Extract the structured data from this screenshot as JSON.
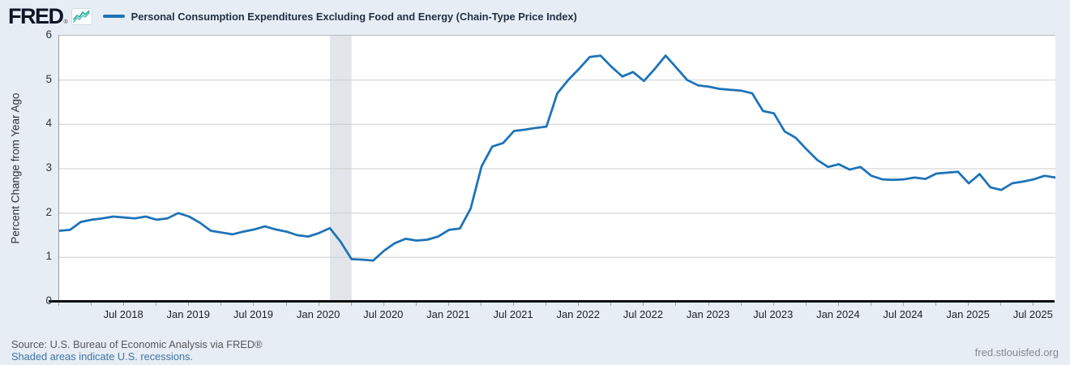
{
  "header": {
    "logo_text": "FRED",
    "logo_registered": "®",
    "series_title": "Personal Consumption Expenditures Excluding Food and Energy (Chain-Type Price Index)"
  },
  "footer": {
    "source_line": "Source: U.S. Bureau of Economic Analysis via FRED®",
    "recession_note": "Shaded areas indicate U.S. recessions.",
    "site_url": "fred.stlouisfed.org"
  },
  "colors": {
    "line": "#1d73b8",
    "gridline": "#cdcdcd",
    "recession_band": "#e2e5e9",
    "background": "#e7edf4",
    "spark_icon_teal_dark": "#2fa9a0",
    "spark_icon_teal_light": "#5cc2b9"
  },
  "chart_data": {
    "type": "line",
    "title": "Personal Consumption Expenditures Excluding Food and Energy (Chain-Type Price Index)",
    "ylabel": "Percent Change from Year Ago",
    "xlabel": "",
    "ylim": [
      0,
      6
    ],
    "y_ticks": [
      0,
      1,
      2,
      3,
      4,
      5,
      6
    ],
    "grid": true,
    "legend_position": "top",
    "x_start": "2018-01",
    "frequency": "monthly",
    "x_tick_labels": [
      "Jul 2018",
      "Jan 2019",
      "Jul 2019",
      "Jan 2020",
      "Jul 2020",
      "Jan 2021",
      "Jul 2021",
      "Jan 2022",
      "Jul 2022",
      "Jan 2023",
      "Jul 2023",
      "Jan 2024",
      "Jul 2024",
      "Jan 2025",
      "Jul 2025"
    ],
    "x_major_tick_start_month": 6,
    "x_major_tick_step_months": 6,
    "x_minor_tick_step_months": 3,
    "recessions": [
      {
        "start": "2020-02",
        "end": "2020-04"
      }
    ],
    "series": [
      {
        "name": "Personal Consumption Expenditures Excluding Food and Energy (Chain-Type Price Index)",
        "color": "#1d73b8",
        "values": [
          1.6,
          1.62,
          1.8,
          1.85,
          1.88,
          1.92,
          1.9,
          1.88,
          1.92,
          1.85,
          1.88,
          2.0,
          1.92,
          1.78,
          1.6,
          1.56,
          1.52,
          1.58,
          1.63,
          1.7,
          1.63,
          1.58,
          1.5,
          1.47,
          1.55,
          1.66,
          1.35,
          0.96,
          0.95,
          0.93,
          1.15,
          1.32,
          1.42,
          1.38,
          1.4,
          1.47,
          1.62,
          1.65,
          2.1,
          3.05,
          3.5,
          3.58,
          3.85,
          3.88,
          3.92,
          3.95,
          4.7,
          5.0,
          5.25,
          5.52,
          5.55,
          5.3,
          5.08,
          5.18,
          4.98,
          5.25,
          5.55,
          5.28,
          5.0,
          4.88,
          4.85,
          4.8,
          4.78,
          4.76,
          4.7,
          4.3,
          4.25,
          3.84,
          3.7,
          3.44,
          3.2,
          3.04,
          3.1,
          2.98,
          3.04,
          2.84,
          2.76,
          2.75,
          2.76,
          2.8,
          2.77,
          2.89,
          2.91,
          2.93,
          2.67,
          2.88,
          2.58,
          2.52,
          2.67,
          2.71,
          2.76,
          2.84,
          2.8
        ]
      }
    ]
  }
}
